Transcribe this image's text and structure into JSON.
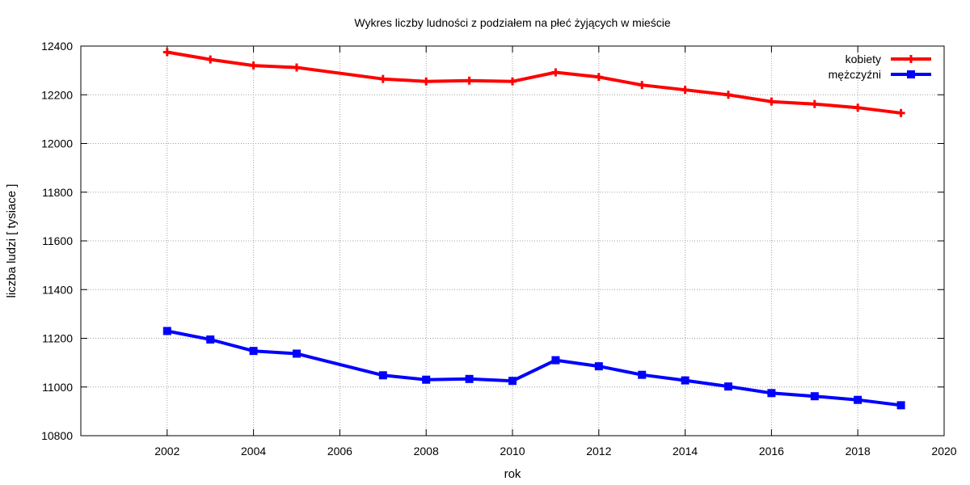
{
  "chart_data": {
    "type": "line",
    "title": "Wykres liczby ludności z podziałem na płeć żyjących w mieście",
    "xlabel": "rok",
    "ylabel": "liczba ludzi [ tysiace ]",
    "xlim": [
      2000,
      2020
    ],
    "ylim": [
      10800,
      12400
    ],
    "xticks": [
      2002,
      2004,
      2006,
      2008,
      2010,
      2012,
      2014,
      2016,
      2018,
      2020
    ],
    "yticks": [
      10800,
      11000,
      11200,
      11400,
      11600,
      11800,
      12000,
      12200,
      12400
    ],
    "grid": true,
    "legend_position": "top-right",
    "series": [
      {
        "name": "kobiety",
        "color": "#ff0000",
        "marker": "plus",
        "x": [
          2002,
          2003,
          2004,
          2005,
          2007,
          2008,
          2009,
          2010,
          2011,
          2012,
          2013,
          2014,
          2015,
          2016,
          2017,
          2018,
          2019
        ],
        "values": [
          12375,
          12345,
          12320,
          12312,
          12265,
          12255,
          12258,
          12255,
          12292,
          12273,
          12240,
          12220,
          12200,
          12172,
          12162,
          12147,
          12125
        ]
      },
      {
        "name": "mężczyźni",
        "color": "#0000ff",
        "marker": "square",
        "x": [
          2002,
          2003,
          2004,
          2005,
          2007,
          2008,
          2009,
          2010,
          2011,
          2012,
          2013,
          2014,
          2015,
          2016,
          2017,
          2018,
          2019
        ],
        "values": [
          11230,
          11195,
          11148,
          11137,
          11048,
          11030,
          11033,
          11025,
          11110,
          11085,
          11050,
          11027,
          11002,
          10975,
          10962,
          10947,
          10925
        ]
      }
    ]
  }
}
